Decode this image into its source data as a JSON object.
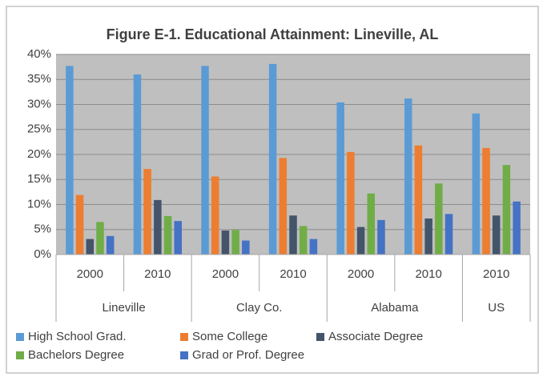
{
  "chart_data": {
    "type": "bar",
    "title": "Figure E-1. Educational Attainment: Lineville, AL",
    "groups": [
      {
        "name": "Lineville",
        "categories": [
          "2000",
          "2010"
        ]
      },
      {
        "name": "Clay Co.",
        "categories": [
          "2000",
          "2010"
        ]
      },
      {
        "name": "Alabama",
        "categories": [
          "2000",
          "2010"
        ]
      },
      {
        "name": "US",
        "categories": [
          "2010"
        ]
      }
    ],
    "series": [
      {
        "name": "High School Grad.",
        "color": "#5b9bd5",
        "values": [
          37.7,
          36.0,
          37.7,
          38.1,
          30.4,
          31.2,
          28.2
        ]
      },
      {
        "name": "Some College",
        "color": "#ed7d31",
        "values": [
          11.9,
          17.1,
          15.6,
          19.3,
          20.5,
          21.8,
          21.3
        ]
      },
      {
        "name": "Associate Degree",
        "color": "#44546a",
        "values": [
          3.1,
          10.9,
          4.8,
          7.8,
          5.5,
          7.2,
          7.8
        ]
      },
      {
        "name": "Bachelors Degree",
        "color": "#70ad47",
        "values": [
          6.5,
          7.7,
          4.9,
          5.7,
          12.2,
          14.2,
          17.9
        ]
      },
      {
        "name": "Grad or Prof. Degree",
        "color": "#4472c4",
        "values": [
          3.7,
          6.7,
          2.8,
          3.1,
          6.9,
          8.1,
          10.6
        ]
      }
    ],
    "ylim": [
      0,
      40
    ],
    "yticks": [
      {
        "value": 0,
        "label": "0%"
      },
      {
        "value": 5,
        "label": "5%"
      },
      {
        "value": 10,
        "label": "10%"
      },
      {
        "value": 15,
        "label": "15%"
      },
      {
        "value": 20,
        "label": "20%"
      },
      {
        "value": 25,
        "label": "25%"
      },
      {
        "value": 30,
        "label": "30%"
      },
      {
        "value": 35,
        "label": "35%"
      },
      {
        "value": 40,
        "label": "40%"
      }
    ],
    "grid": true,
    "legend": "bottom"
  }
}
